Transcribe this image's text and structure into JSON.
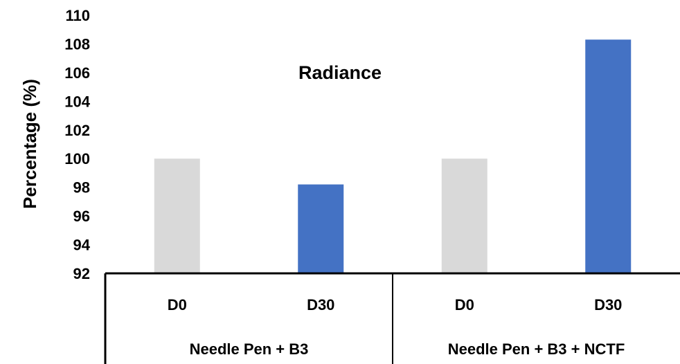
{
  "chart_data": {
    "type": "bar",
    "title": "Radiance",
    "xlabel": "",
    "ylabel": "Percentage (%)",
    "ylim": [
      92,
      110
    ],
    "yticks": [
      92,
      94,
      96,
      98,
      100,
      102,
      104,
      106,
      108,
      110
    ],
    "grid": false,
    "groups": [
      {
        "label": "Needle Pen + B3",
        "bars": [
          {
            "category": "D0",
            "value": 100,
            "color": "#d9d9d9"
          },
          {
            "category": "D30",
            "value": 98.2,
            "color": "#4472c4"
          }
        ]
      },
      {
        "label": "Needle Pen + B3 + NCTF",
        "bars": [
          {
            "category": "D0",
            "value": 100,
            "color": "#d9d9d9"
          },
          {
            "category": "D30",
            "value": 108.3,
            "color": "#4472c4"
          }
        ]
      }
    ]
  }
}
